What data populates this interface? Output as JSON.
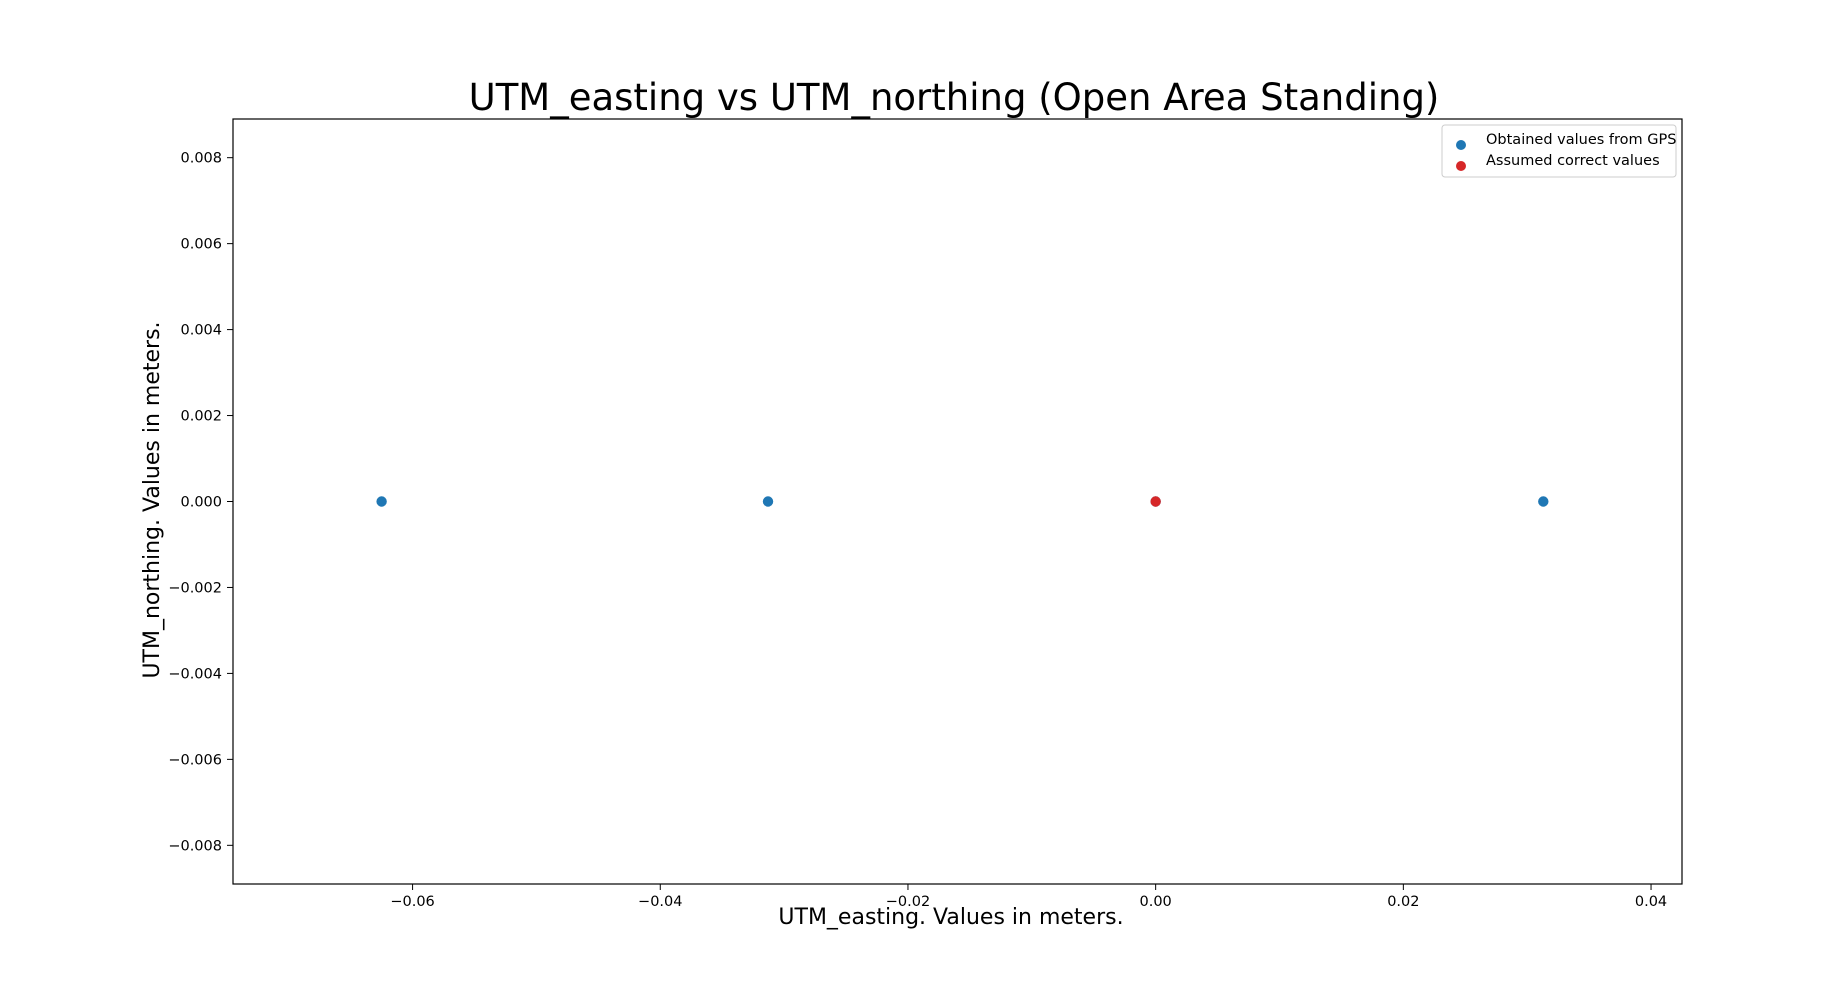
{
  "chart_data": {
    "type": "scatter",
    "title": "UTM_easting vs UTM_northing (Open Area Standing)",
    "xlabel": "UTM_easting. Values in meters.",
    "ylabel": "UTM_northing. Values in meters.",
    "xlim": [
      -0.0745,
      0.0425
    ],
    "ylim": [
      -0.0089,
      0.0089
    ],
    "xticks": [
      -0.06,
      -0.04,
      -0.02,
      0.0,
      0.02,
      0.04
    ],
    "xtick_labels": [
      "−0.06",
      "−0.04",
      "−0.02",
      "0.00",
      "0.02",
      "0.04"
    ],
    "yticks": [
      0.008,
      0.006,
      0.004,
      0.002,
      0.0,
      -0.002,
      -0.004,
      -0.006,
      -0.008
    ],
    "ytick_labels": [
      "0.008",
      "0.006",
      "0.004",
      "0.002",
      "0.000",
      "−0.002",
      "−0.004",
      "−0.006",
      "−0.008"
    ],
    "grid": false,
    "legend_position": "top-right",
    "series": [
      {
        "name": "Obtained values from GPS",
        "color": "#1f77b4",
        "points": [
          {
            "x": -0.0625,
            "y": 0.0
          },
          {
            "x": -0.0313,
            "y": 0.0
          },
          {
            "x": 0.0,
            "y": 0.0
          },
          {
            "x": 0.0313,
            "y": 0.0
          }
        ]
      },
      {
        "name": "Assumed correct values",
        "color": "#d62728",
        "points": [
          {
            "x": 0.0,
            "y": 0.0
          }
        ]
      }
    ]
  }
}
